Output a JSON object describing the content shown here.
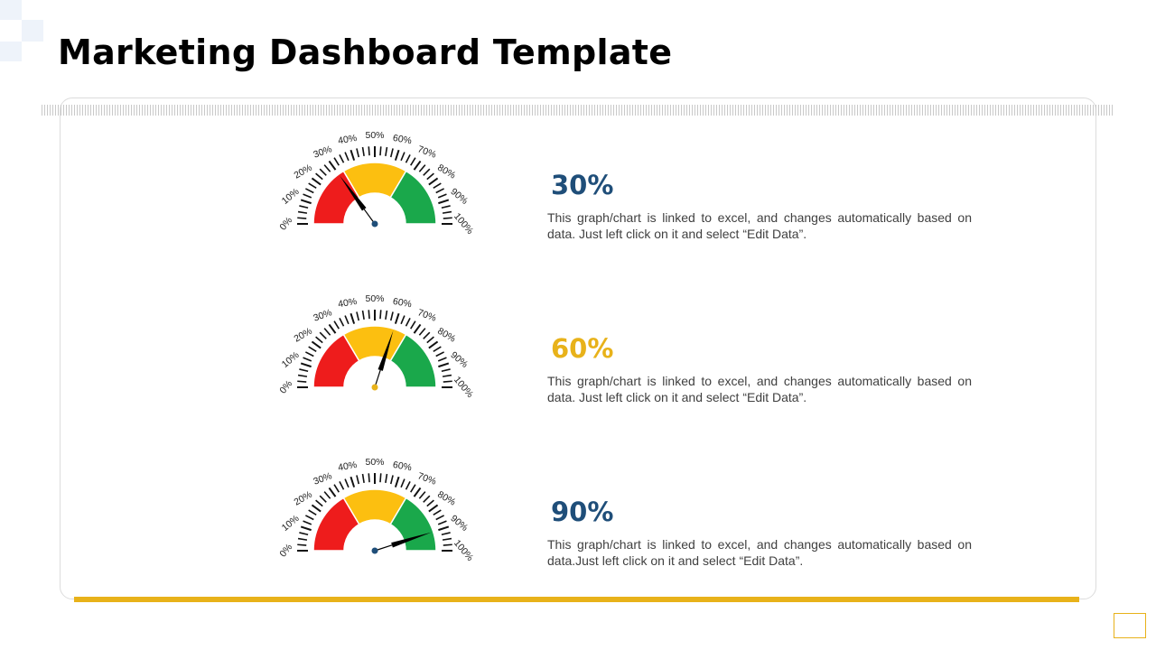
{
  "page_title": "Marketing Dashboard Template",
  "colors": {
    "red": "#ee1c1c",
    "yellow": "#fcbf10",
    "green": "#1aa84b",
    "blue_value": "#1f4e79",
    "yellow_value": "#e8b21a",
    "needle": "#000000"
  },
  "chart_data": [
    {
      "type": "gauge",
      "value": 30,
      "min": 0,
      "max": 100,
      "ticks": [
        "0%",
        "10%",
        "20%",
        "30%",
        "40%",
        "50%",
        "60%",
        "70%",
        "80%",
        "90%",
        "100%"
      ],
      "bands": [
        {
          "from": 0,
          "to": 33,
          "color": "red"
        },
        {
          "from": 33,
          "to": 67,
          "color": "yellow"
        },
        {
          "from": 67,
          "to": 100,
          "color": "green"
        }
      ],
      "value_label": "30%",
      "value_color": "#1f4e79",
      "description": "This graph/chart is linked to excel, and changes automatically based on data. Just left click on it and select “Edit Data”."
    },
    {
      "type": "gauge",
      "value": 60,
      "min": 0,
      "max": 100,
      "ticks": [
        "0%",
        "10%",
        "20%",
        "30%",
        "40%",
        "50%",
        "60%",
        "70%",
        "80%",
        "90%",
        "100%"
      ],
      "bands": [
        {
          "from": 0,
          "to": 33,
          "color": "red"
        },
        {
          "from": 33,
          "to": 67,
          "color": "yellow"
        },
        {
          "from": 67,
          "to": 100,
          "color": "green"
        }
      ],
      "value_label": "60%",
      "value_color": "#e8b21a",
      "description": "This graph/chart is linked to excel, and changes automatically based on data. Just left click on it and select “Edit Data”."
    },
    {
      "type": "gauge",
      "value": 90,
      "min": 0,
      "max": 100,
      "ticks": [
        "0%",
        "10%",
        "20%",
        "30%",
        "40%",
        "50%",
        "60%",
        "70%",
        "80%",
        "90%",
        "100%"
      ],
      "bands": [
        {
          "from": 0,
          "to": 33,
          "color": "red"
        },
        {
          "from": 33,
          "to": 67,
          "color": "yellow"
        },
        {
          "from": 67,
          "to": 100,
          "color": "green"
        }
      ],
      "value_label": "90%",
      "value_color": "#1f4e79",
      "description": "This graph/chart is linked to excel, and changes automatically based on data.Just left click on it and select “Edit Data”."
    }
  ]
}
